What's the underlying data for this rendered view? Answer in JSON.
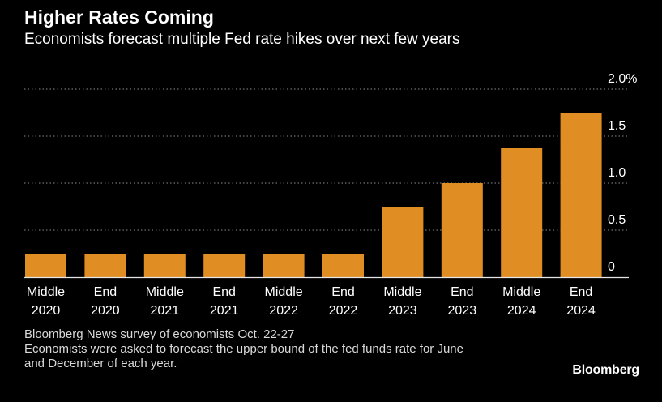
{
  "header": {
    "title": "Higher Rates Coming",
    "subtitle": "Economists forecast multiple Fed rate hikes over next few years"
  },
  "chart_data": {
    "type": "bar",
    "title": "Higher Rates Coming",
    "subtitle": "Economists forecast multiple Fed rate hikes over next few years",
    "categories": [
      [
        "Middle",
        "2020"
      ],
      [
        "End",
        "2020"
      ],
      [
        "Middle",
        "2021"
      ],
      [
        "End",
        "2021"
      ],
      [
        "Middle",
        "2022"
      ],
      [
        "End",
        "2022"
      ],
      [
        "Middle",
        "2023"
      ],
      [
        "End",
        "2023"
      ],
      [
        "Middle",
        "2024"
      ],
      [
        "End",
        "2024"
      ]
    ],
    "values": [
      0.25,
      0.25,
      0.25,
      0.25,
      0.25,
      0.25,
      0.75,
      1.0,
      1.375,
      1.75
    ],
    "ylim": [
      0,
      2.0
    ],
    "y_ticks": [
      {
        "value": 0,
        "label": "0"
      },
      {
        "value": 0.5,
        "label": "0.5"
      },
      {
        "value": 1.0,
        "label": "1.0"
      },
      {
        "value": 1.5,
        "label": "1.5"
      },
      {
        "value": 2.0,
        "label": "2.0%"
      }
    ],
    "y_axis_side": "right",
    "grid": "horizontal-dotted",
    "bar_color": "#e08e23",
    "background": "#000000"
  },
  "footnote": {
    "line1": "Bloomberg News survey of economists Oct. 22-27",
    "line2": "Economists were asked to forecast the upper bound of the fed funds rate for June",
    "line3": "and December of each year."
  },
  "brand": "Bloomberg"
}
